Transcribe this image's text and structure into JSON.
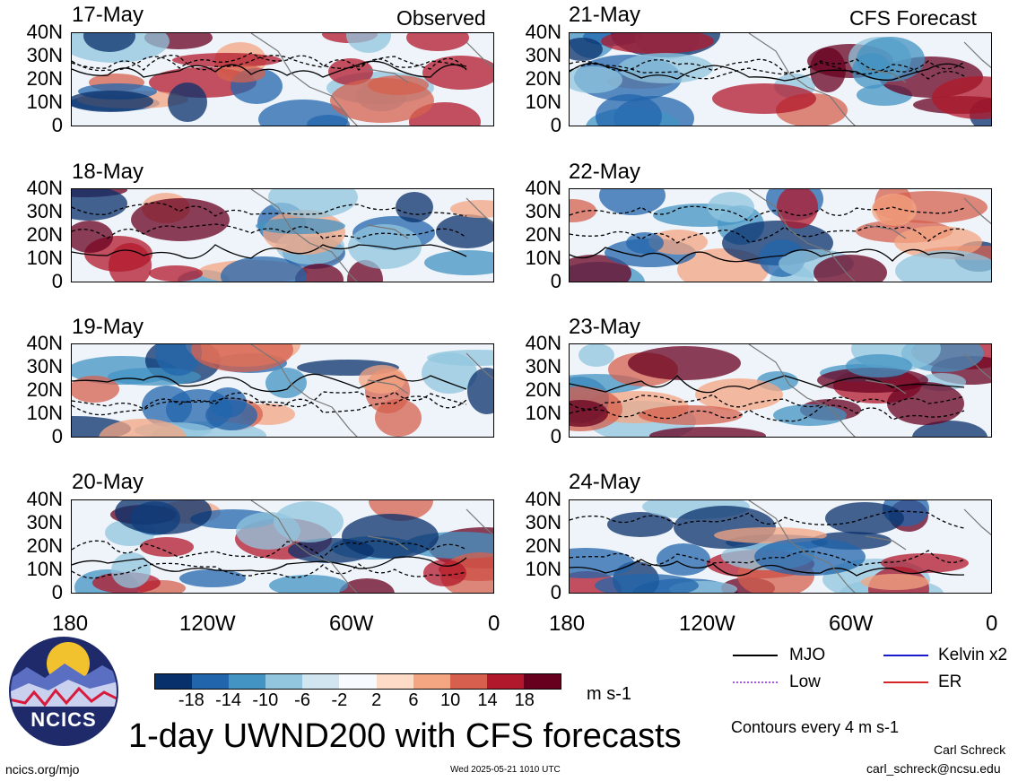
{
  "header": {
    "left_label": "Observed",
    "right_label": "CFS Forecast"
  },
  "observed_dates": [
    "17-May",
    "18-May",
    "19-May",
    "20-May"
  ],
  "forecast_dates": [
    "21-May",
    "22-May",
    "23-May",
    "24-May"
  ],
  "y_axis_labels": [
    "40N",
    "30N",
    "20N",
    "10N",
    "0"
  ],
  "x_axis_labels": [
    "180",
    "120W",
    "60W",
    "0"
  ],
  "colorbar": {
    "colors": [
      "#08306b",
      "#2166ac",
      "#4393c3",
      "#92c5de",
      "#d1e5f0",
      "#f7fbff",
      "#fddbc7",
      "#f4a582",
      "#d6604d",
      "#b2182b",
      "#67001f"
    ],
    "labels": [
      "-18",
      "-14",
      "-10",
      "-6",
      "-2",
      "2",
      "6",
      "10",
      "14",
      "18"
    ],
    "units": "m s-1"
  },
  "legend": {
    "items": [
      {
        "label": "MJO",
        "color": "#000000"
      },
      {
        "label": "Kelvin x2",
        "color": "#1a1acc"
      },
      {
        "label": "Low",
        "color": "#a855f7"
      },
      {
        "label": "ER",
        "color": "#d62728"
      }
    ],
    "contour_note": "Contours every 4 m s-1"
  },
  "title": "1-day UWND200 with CFS forecasts",
  "logo_text": "NCICS",
  "footer": {
    "url": "ncics.org/mjo",
    "timestamp": "Wed 2025-05-21 1010 UTC",
    "author": "Carl Schreck",
    "email": "carl_schreck@ncsu.edu"
  }
}
